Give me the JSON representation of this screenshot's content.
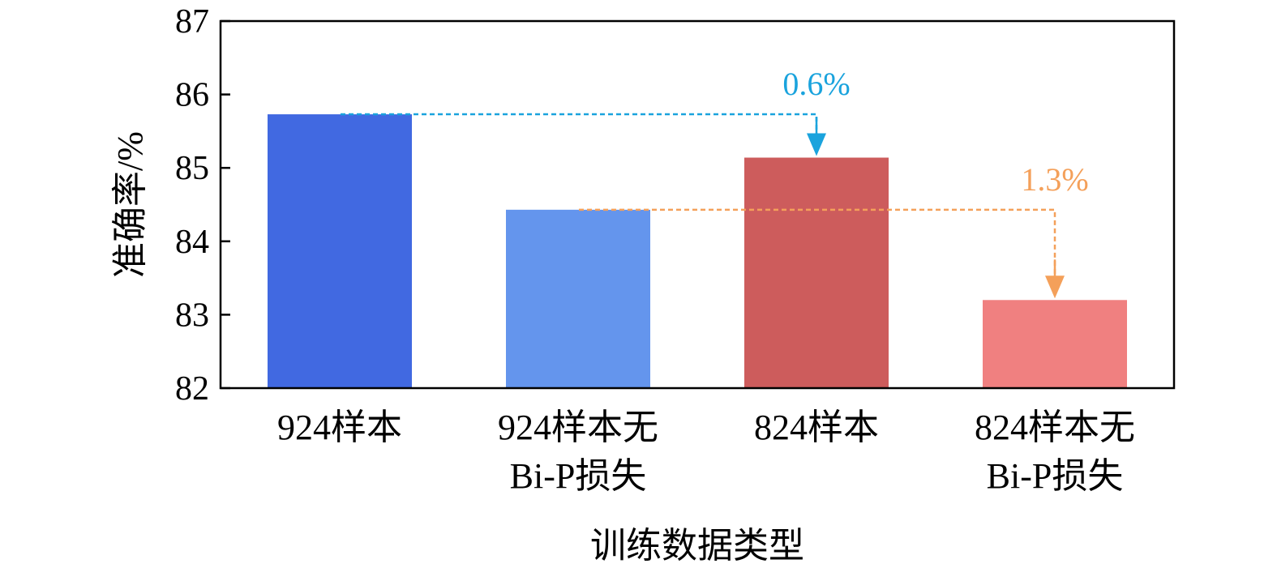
{
  "chart_data": {
    "type": "bar",
    "categories": [
      [
        "924样本"
      ],
      [
        "924样本无",
        "Bi-P损失"
      ],
      [
        "824样本"
      ],
      [
        "824样本无",
        "Bi-P损失"
      ]
    ],
    "values": [
      85.73,
      84.43,
      85.14,
      83.2
    ],
    "colors": [
      "#4169e1",
      "#6495ed",
      "#cd5c5c",
      "#f08080"
    ],
    "xlabel": "训练数据类型",
    "ylabel": "准确率/%",
    "ylim": [
      82,
      87
    ],
    "yticks": [
      82,
      83,
      84,
      85,
      86,
      87
    ],
    "grid": false,
    "annotations": [
      {
        "label": "0.6%",
        "from_index": 0,
        "to_index": 2,
        "color": "#1aa3dd"
      },
      {
        "label": "1.3%",
        "from_index": 1,
        "to_index": 3,
        "color": "#f4a05a"
      }
    ]
  }
}
